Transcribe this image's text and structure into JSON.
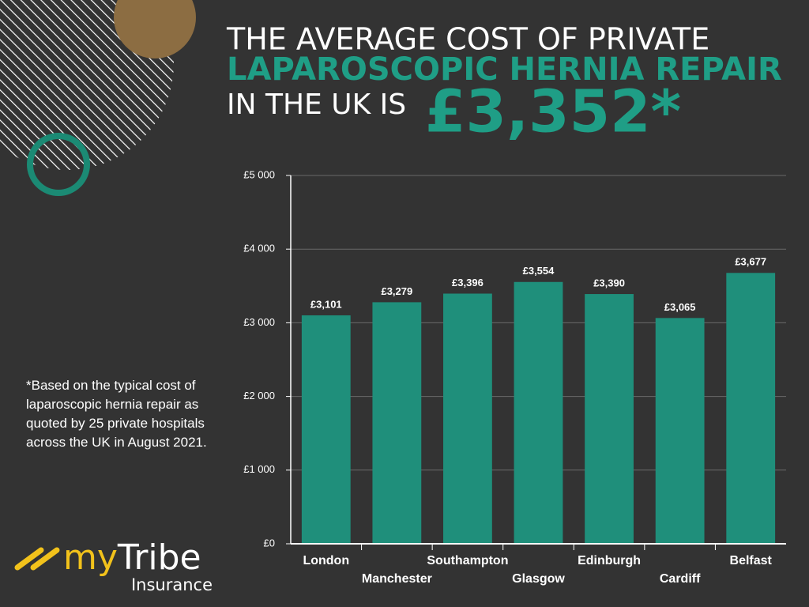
{
  "header": {
    "line1": "THE AVERAGE COST OF PRIVATE",
    "line2": "LAPAROSCOPIC HERNIA REPAIR",
    "line3": "IN THE UK IS",
    "highlight": "£3,352*"
  },
  "footnote": "*Based on the typical cost of laparoscopic hernia repair as quoted by 25 private hospitals across the UK in August 2021.",
  "logo": {
    "my": "my",
    "tribe": "Tribe",
    "sub": "Insurance"
  },
  "chart_data": {
    "type": "bar",
    "categories": [
      "London",
      "Manchester",
      "Southampton",
      "Glasgow",
      "Edinburgh",
      "Cardiff",
      "Belfast"
    ],
    "values": [
      3101,
      3279,
      3396,
      3554,
      3390,
      3065,
      3677
    ],
    "value_labels": [
      "£3,101",
      "£3,279",
      "£3,396",
      "£3,554",
      "£3,390",
      "£3,065",
      "£3,677"
    ],
    "color": "#1f8f7b",
    "ylim": [
      0,
      5000
    ],
    "yticks": [
      {
        "value": 0,
        "label": "£0"
      },
      {
        "value": 1000,
        "label": "£1 000"
      },
      {
        "value": 2000,
        "label": "£2 000"
      },
      {
        "value": 3000,
        "label": "£3 000"
      },
      {
        "value": 4000,
        "label": "£4 000"
      },
      {
        "value": 5000,
        "label": "£5 000"
      }
    ],
    "grid": true
  }
}
